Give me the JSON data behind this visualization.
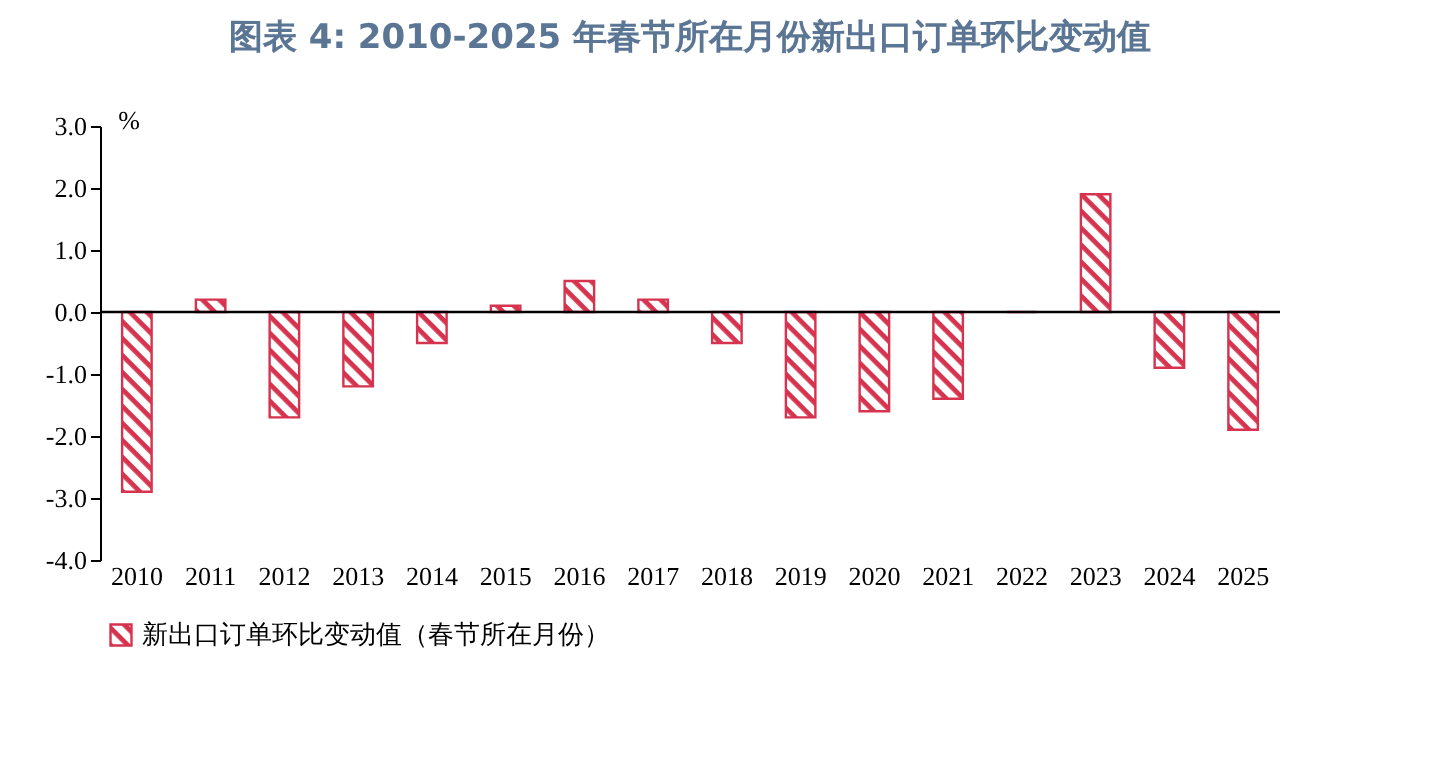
{
  "chart_data": {
    "type": "bar",
    "title": "图表 4:    2010-2025 年春节所在月份新出口订单环比变动值",
    "ylabel": "%",
    "categories": [
      "2010",
      "2011",
      "2012",
      "2013",
      "2014",
      "2015",
      "2016",
      "2017",
      "2018",
      "2019",
      "2020",
      "2021",
      "2022",
      "2023",
      "2024",
      "2025"
    ],
    "series": [
      {
        "name": "新出口订单环比变动值（春节所在月份）",
        "color": "#d6334f",
        "values": [
          -2.9,
          0.2,
          -1.7,
          -1.2,
          -0.5,
          0.1,
          0.5,
          0.2,
          -0.5,
          -1.7,
          -1.6,
          -1.4,
          0,
          1.9,
          -0.9,
          -1.9
        ]
      }
    ],
    "ylim": [
      -4,
      3
    ],
    "yticks": [
      {
        "value": -4,
        "label": "-4.0"
      },
      {
        "value": -3,
        "label": "-3.0"
      },
      {
        "value": -2,
        "label": "-2.0"
      },
      {
        "value": -1,
        "label": "-1.0"
      },
      {
        "value": 0,
        "label": "0.0"
      },
      {
        "value": 1,
        "label": "1.0"
      },
      {
        "value": 2,
        "label": "2.0"
      },
      {
        "value": 3,
        "label": "3.0"
      }
    ],
    "ref_lines": [
      {
        "axis": "y",
        "value": 0,
        "color": "#000000"
      }
    ],
    "grid": false,
    "legend": "bottom"
  }
}
